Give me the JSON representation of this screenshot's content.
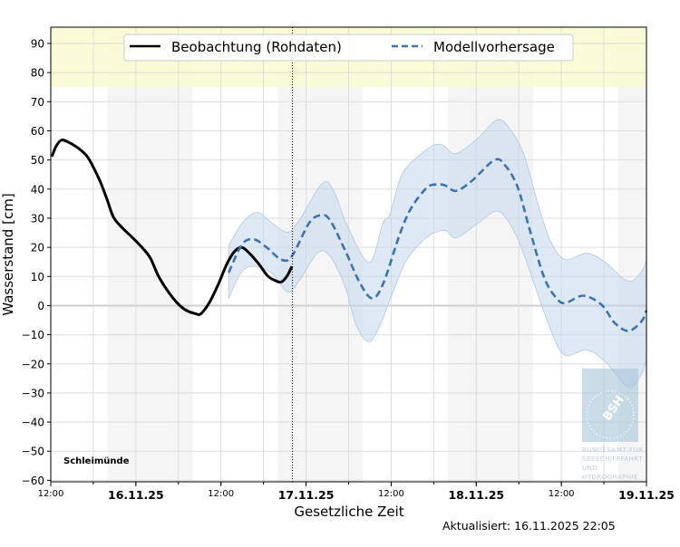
{
  "chart_data": {
    "type": "line",
    "xlabel": "Gesetzliche Zeit",
    "ylabel": "Wasserstand [cm]",
    "xlim": [
      "2025-11-15T12:00",
      "2025-11-19T00:00"
    ],
    "ylim": [
      -60.5,
      95.6
    ],
    "yticks": [
      -60,
      -50,
      -40,
      -30,
      -20,
      -10,
      0,
      10,
      20,
      30,
      40,
      50,
      60,
      70,
      80,
      90
    ],
    "xticks": [
      {
        "t": "2025-11-15T12:00",
        "label": "12:00",
        "bold": false
      },
      {
        "t": "2025-11-16T00:00",
        "label": "16.11.25",
        "bold": true
      },
      {
        "t": "2025-11-16T12:00",
        "label": "12:00",
        "bold": false
      },
      {
        "t": "2025-11-17T00:00",
        "label": "17.11.25",
        "bold": true
      },
      {
        "t": "2025-11-17T12:00",
        "label": "12:00",
        "bold": false
      },
      {
        "t": "2025-11-18T00:00",
        "label": "18.11.25",
        "bold": true
      },
      {
        "t": "2025-11-18T12:00",
        "label": "12:00",
        "bold": false
      },
      {
        "t": "2025-11-19T00:00",
        "label": "19.11.25",
        "bold": true
      }
    ],
    "grid": true,
    "legend_position": "top-center",
    "night_bands": [
      [
        "2025-11-15T20:00",
        "2025-11-16T08:00"
      ],
      [
        "2025-11-16T20:00",
        "2025-11-17T08:00"
      ],
      [
        "2025-11-17T20:00",
        "2025-11-18T08:00"
      ],
      [
        "2025-11-18T20:00",
        "2025-11-19T00:00"
      ]
    ],
    "warning_band_from": 75,
    "now_marker": "2025-11-16T22:05",
    "station": "Schleimünde",
    "colors": {
      "observation": "#000000",
      "forecast": "#3a75b0",
      "uncertainty": "#c3d7e9",
      "warning": "#fbfad0",
      "night": "#f5f5f5",
      "grid": "#dddddd"
    },
    "series": [
      {
        "name": "Beobachtung (Rohdaten)",
        "style": "solid",
        "points": [
          [
            "2025-11-15T12:10",
            51.2
          ],
          [
            "2025-11-15T12:45",
            54.7
          ],
          [
            "2025-11-15T13:30",
            56.8
          ],
          [
            "2025-11-15T14:25",
            56.2
          ],
          [
            "2025-11-15T15:45",
            54.3
          ],
          [
            "2025-11-15T17:00",
            51.6
          ],
          [
            "2025-11-15T17:40",
            49.1
          ],
          [
            "2025-11-15T18:55",
            42.9
          ],
          [
            "2025-11-15T19:55",
            36.6
          ],
          [
            "2025-11-15T20:50",
            30.4
          ],
          [
            "2025-11-15T22:05",
            26.7
          ],
          [
            "2025-11-15T23:25",
            23.6
          ],
          [
            "2025-11-16T00:40",
            20.5
          ],
          [
            "2025-11-16T02:00",
            16.5
          ],
          [
            "2025-11-16T03:10",
            10.2
          ],
          [
            "2025-11-16T04:30",
            5.0
          ],
          [
            "2025-11-16T05:50",
            0.9
          ],
          [
            "2025-11-16T07:05",
            -1.6
          ],
          [
            "2025-11-16T08:25",
            -2.8
          ],
          [
            "2025-11-16T09:10",
            -2.8
          ],
          [
            "2025-11-16T10:20",
            0.9
          ],
          [
            "2025-11-16T11:35",
            7.1
          ],
          [
            "2025-11-16T12:50",
            14.3
          ],
          [
            "2025-11-16T13:55",
            18.6
          ],
          [
            "2025-11-16T14:55",
            20.0
          ],
          [
            "2025-11-16T16:00",
            18.0
          ],
          [
            "2025-11-16T17:20",
            14.3
          ],
          [
            "2025-11-16T18:35",
            10.2
          ],
          [
            "2025-11-16T19:35",
            8.7
          ],
          [
            "2025-11-16T20:30",
            8.1
          ],
          [
            "2025-11-16T21:20",
            10.2
          ],
          [
            "2025-11-16T22:00",
            13.4
          ]
        ]
      },
      {
        "name": "Modellvorhersage",
        "style": "dashed",
        "points": [
          [
            "2025-11-16T13:05",
            11.3
          ],
          [
            "2025-11-16T15:00",
            21.1
          ],
          [
            "2025-11-16T16:40",
            22.7
          ],
          [
            "2025-11-16T18:20",
            20.2
          ],
          [
            "2025-11-16T20:30",
            15.8
          ],
          [
            "2025-11-16T22:00",
            17.0
          ],
          [
            "2025-11-17T00:25",
            28.3
          ],
          [
            "2025-11-17T02:00",
            31.0
          ],
          [
            "2025-11-17T03:20",
            29.5
          ],
          [
            "2025-11-17T05:30",
            19.0
          ],
          [
            "2025-11-17T07:35",
            7.8
          ],
          [
            "2025-11-17T09:20",
            2.5
          ],
          [
            "2025-11-17T10:55",
            7.8
          ],
          [
            "2025-11-17T13:10",
            24.2
          ],
          [
            "2025-11-17T14:50",
            33.5
          ],
          [
            "2025-11-17T17:00",
            40.4
          ],
          [
            "2025-11-17T18:20",
            41.6
          ],
          [
            "2025-11-17T19:35",
            41.3
          ],
          [
            "2025-11-17T21:10",
            39.4
          ],
          [
            "2025-11-17T23:25",
            42.9
          ],
          [
            "2025-11-18T02:35",
            50.0
          ],
          [
            "2025-11-18T04:05",
            48.1
          ],
          [
            "2025-11-18T05:50",
            40.7
          ],
          [
            "2025-11-18T07:30",
            26.4
          ],
          [
            "2025-11-18T09:35",
            9.6
          ],
          [
            "2025-11-18T11:20",
            2.5
          ],
          [
            "2025-11-18T12:35",
            0.9
          ],
          [
            "2025-11-18T15:05",
            3.4
          ],
          [
            "2025-11-18T17:40",
            0.3
          ],
          [
            "2025-11-18T19:30",
            -5.9
          ],
          [
            "2025-11-18T21:30",
            -8.7
          ],
          [
            "2025-11-18T23:20",
            -5.3
          ],
          [
            "2025-11-19T00:00",
            -1.6
          ]
        ]
      }
    ],
    "uncertainty_band": {
      "upper": [
        [
          "2025-11-16T13:05",
          20.6
        ],
        [
          "2025-11-16T15:00",
          28.3
        ],
        [
          "2025-11-16T17:05",
          32.0
        ],
        [
          "2025-11-16T19:15",
          28.3
        ],
        [
          "2025-11-16T21:25",
          25.2
        ],
        [
          "2025-11-16T23:05",
          29.5
        ],
        [
          "2025-11-17T02:15",
          41.9
        ],
        [
          "2025-11-17T03:50",
          39.8
        ],
        [
          "2025-11-17T05:50",
          27.3
        ],
        [
          "2025-11-17T08:55",
          14.9
        ],
        [
          "2025-11-17T10:50",
          28.3
        ],
        [
          "2025-11-17T11:50",
          31.4
        ],
        [
          "2025-11-17T13:10",
          42.9
        ],
        [
          "2025-11-17T14:25",
          48.1
        ],
        [
          "2025-11-17T17:25",
          54.3
        ],
        [
          "2025-11-17T19:10",
          55.3
        ],
        [
          "2025-11-17T21:05",
          52.2
        ],
        [
          "2025-11-18T00:15",
          57.5
        ],
        [
          "2025-11-18T02:50",
          63.7
        ],
        [
          "2025-11-18T04:30",
          61.5
        ],
        [
          "2025-11-18T06:40",
          52.2
        ],
        [
          "2025-11-18T08:45",
          34.5
        ],
        [
          "2025-11-18T10:30",
          22.0
        ],
        [
          "2025-11-18T12:35",
          15.8
        ],
        [
          "2025-11-18T15:35",
          18.0
        ],
        [
          "2025-11-18T18:10",
          14.9
        ],
        [
          "2025-11-18T21:25",
          8.4
        ],
        [
          "2025-11-18T23:20",
          11.8
        ],
        [
          "2025-11-19T00:00",
          15.8
        ]
      ],
      "lower": [
        [
          "2025-11-16T13:05",
          2.5
        ],
        [
          "2025-11-16T15:00",
          11.8
        ],
        [
          "2025-11-16T17:05",
          13.4
        ],
        [
          "2025-11-16T19:15",
          10.9
        ],
        [
          "2025-11-16T21:25",
          4.7
        ],
        [
          "2025-11-16T23:05",
          8.7
        ],
        [
          "2025-11-17T01:35",
          18.0
        ],
        [
          "2025-11-17T03:20",
          17.1
        ],
        [
          "2025-11-17T05:30",
          6.5
        ],
        [
          "2025-11-17T07:05",
          -6.8
        ],
        [
          "2025-11-17T08:55",
          -12.4
        ],
        [
          "2025-11-17T10:35",
          -5.9
        ],
        [
          "2025-11-17T12:15",
          4.7
        ],
        [
          "2025-11-17T14:00",
          14.9
        ],
        [
          "2025-11-17T15:40",
          20.2
        ],
        [
          "2025-11-17T17:25",
          24.2
        ],
        [
          "2025-11-17T19:35",
          25.8
        ],
        [
          "2025-11-17T21:10",
          23.3
        ],
        [
          "2025-11-18T00:15",
          28.3
        ],
        [
          "2025-11-18T02:35",
          32.3
        ],
        [
          "2025-11-18T04:05",
          30.4
        ],
        [
          "2025-11-18T06:10",
          21.1
        ],
        [
          "2025-11-18T08:45",
          3.4
        ],
        [
          "2025-11-18T10:55",
          -10.9
        ],
        [
          "2025-11-18T12:35",
          -17.1
        ],
        [
          "2025-11-18T15:35",
          -15.2
        ],
        [
          "2025-11-18T18:10",
          -19.3
        ],
        [
          "2025-11-18T21:30",
          -28.0
        ],
        [
          "2025-11-18T23:20",
          -23.3
        ],
        [
          "2025-11-19T00:00",
          -18.3
        ]
      ]
    }
  },
  "updated_text": "Aktualisiert: 16.11.2025 22:05",
  "logo": {
    "mark": "BSH",
    "lines": [
      "BUNDESAMT FÜR",
      "SEESCHIFFFAHRT",
      "UND",
      "HYDROGRAPHIE"
    ]
  }
}
